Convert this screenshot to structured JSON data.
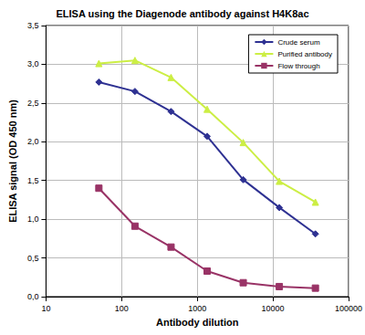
{
  "chart_data": {
    "type": "line",
    "title": "ELISA using the Diagenode antibody against H4K8ac",
    "x_label": "Antibody dilution",
    "y_label": "ELISA signal (OD 450 nm)",
    "x": [
      50,
      150,
      450,
      1350,
      4050,
      12150,
      36450
    ],
    "series": [
      {
        "name": "Crude serum",
        "color": "#2e3192",
        "marker": "diamond",
        "values": [
          2.77,
          2.65,
          2.39,
          2.07,
          1.51,
          1.15,
          0.81
        ]
      },
      {
        "name": "Purified antibody",
        "color": "#ccee44",
        "marker": "triangle",
        "values": [
          3.01,
          3.05,
          2.83,
          2.42,
          1.99,
          1.49,
          1.22
        ]
      },
      {
        "name": "Flow through",
        "color": "#993366",
        "marker": "square",
        "values": [
          1.4,
          0.91,
          0.64,
          0.33,
          0.18,
          0.13,
          0.11
        ]
      }
    ],
    "log": "x",
    "xlim": [
      10,
      100000
    ],
    "xticks": [
      10,
      100,
      1000,
      10000,
      100000
    ],
    "ylim": [
      0,
      3.5
    ],
    "yticks": [
      {
        "value": 0,
        "label": "0,0"
      },
      {
        "value": 0.5,
        "label": "0,5"
      },
      {
        "value": 1,
        "label": "1,0"
      },
      {
        "value": 1.5,
        "label": "1,5"
      },
      {
        "value": 2,
        "label": "2,0"
      },
      {
        "value": 2.5,
        "label": "2,5"
      },
      {
        "value": 3,
        "label": "3,0"
      },
      {
        "value": 3.5,
        "label": "3,5"
      }
    ],
    "grid": true,
    "legend": "top-right"
  }
}
